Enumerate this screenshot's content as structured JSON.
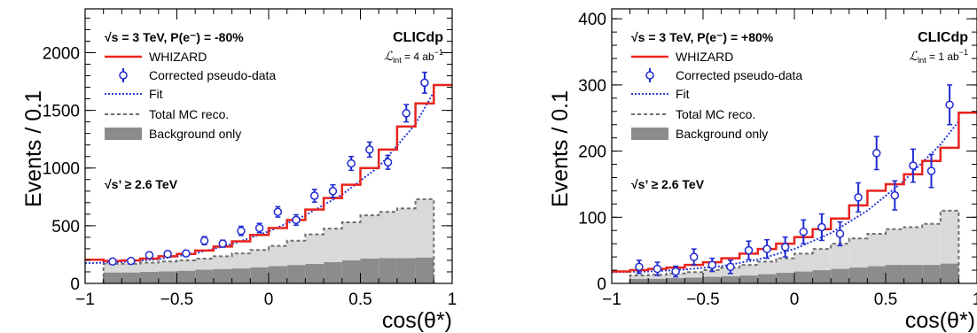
{
  "colors": {
    "whizard": "#e8231e",
    "data": "#1f2ad1",
    "fit": "#2a3ad8",
    "total_mc": "#707070",
    "background": "#8c8c8c",
    "total_mc_fill": "#d9d9d9"
  },
  "chart_data": [
    {
      "type": "line",
      "title": "",
      "xlabel": "cos(θ*)",
      "ylabel": "Events / 0.1",
      "xlim": [
        -1,
        1
      ],
      "ylim": [
        0,
        2380
      ],
      "xticks": [
        "−1",
        "−0.5",
        "0",
        "0.5",
        "1"
      ],
      "yticks": [
        "0",
        "500",
        "1000",
        "1500",
        "2000"
      ],
      "ytick_values": [
        0,
        500,
        1000,
        1500,
        2000
      ],
      "legend_position": "top-left",
      "header": {
        "beam": "√s = 3 TeV, P(e⁻) = -80%",
        "experiment": "CLICdp",
        "lumi_symbol": "ℒ",
        "lumi_sub": "int",
        "lumi_value": " = 4 ab",
        "lumi_sup": "−1"
      },
      "cut_label": "√s’ ≥ 2.6 TeV",
      "legend": [
        "WHIZARD",
        "Corrected pseudo-data",
        "Fit",
        "Total MC reco.",
        "Background only"
      ],
      "bin_edges": [
        -1.0,
        -0.9,
        -0.8,
        -0.7,
        -0.6,
        -0.5,
        -0.4,
        -0.3,
        -0.2,
        -0.1,
        0.0,
        0.1,
        0.2,
        0.3,
        0.4,
        0.5,
        0.6,
        0.7,
        0.8,
        0.9,
        1.0
      ],
      "whizard": [
        205,
        195,
        200,
        215,
        235,
        255,
        285,
        320,
        365,
        420,
        480,
        550,
        640,
        740,
        855,
        1000,
        1160,
        1360,
        1560,
        1720
      ],
      "total_mc_reco": [
        null,
        170,
        170,
        180,
        190,
        200,
        215,
        235,
        260,
        290,
        325,
        370,
        425,
        475,
        530,
        590,
        620,
        650,
        730,
        null
      ],
      "background_only": [
        null,
        95,
        95,
        100,
        105,
        110,
        120,
        125,
        130,
        140,
        150,
        160,
        170,
        185,
        200,
        215,
        220,
        220,
        225,
        null
      ],
      "pseudo_data": {
        "x": [
          -0.85,
          -0.75,
          -0.65,
          -0.55,
          -0.45,
          -0.35,
          -0.25,
          -0.15,
          -0.05,
          0.05,
          0.15,
          0.25,
          0.35,
          0.45,
          0.55,
          0.65,
          0.75,
          0.85
        ],
        "y": [
          190,
          195,
          245,
          255,
          260,
          370,
          345,
          455,
          480,
          620,
          550,
          760,
          800,
          1040,
          1160,
          1050,
          1475,
          1740
        ],
        "err": [
          20,
          20,
          25,
          25,
          25,
          35,
          30,
          40,
          40,
          45,
          45,
          55,
          55,
          60,
          65,
          60,
          75,
          90
        ]
      },
      "fit": {
        "x": [
          -1.0,
          -0.8,
          -0.6,
          -0.4,
          -0.2,
          0.0,
          0.2,
          0.4,
          0.6,
          0.8,
          0.9
        ],
        "y": [
          175,
          185,
          210,
          260,
          340,
          450,
          590,
          770,
          1010,
          1380,
          1660
        ]
      }
    },
    {
      "type": "line",
      "title": "",
      "xlabel": "cos(θ*)",
      "ylabel": "Events / 0.1",
      "xlim": [
        -1,
        1
      ],
      "ylim": [
        0,
        415
      ],
      "xticks": [
        "−1",
        "−0.5",
        "0",
        "0.5",
        "1"
      ],
      "yticks": [
        "0",
        "100",
        "200",
        "300",
        "400"
      ],
      "ytick_values": [
        0,
        100,
        200,
        300,
        400
      ],
      "legend_position": "top-left",
      "header": {
        "beam": "√s = 3 TeV, P(e⁻) = +80%",
        "experiment": "CLICdp",
        "lumi_symbol": "ℒ",
        "lumi_sub": "int",
        "lumi_value": " = 1 ab",
        "lumi_sup": "−1"
      },
      "cut_label": "√s’ ≥ 2.6 TeV",
      "legend": [
        "WHIZARD",
        "Corrected pseudo-data",
        "Fit",
        "Total MC reco.",
        "Background only"
      ],
      "bin_edges": [
        -1.0,
        -0.9,
        -0.8,
        -0.7,
        -0.6,
        -0.5,
        -0.4,
        -0.3,
        -0.2,
        -0.1,
        0.0,
        0.1,
        0.2,
        0.3,
        0.4,
        0.5,
        0.6,
        0.7,
        0.8,
        0.9,
        1.0
      ],
      "whizard": [
        18,
        20,
        22,
        24,
        28,
        32,
        38,
        45,
        52,
        60,
        70,
        82,
        98,
        118,
        140,
        150,
        165,
        185,
        205,
        258
      ],
      "total_mc_reco": [
        null,
        12,
        13,
        15,
        17,
        20,
        24,
        28,
        33,
        38,
        45,
        52,
        60,
        68,
        75,
        82,
        85,
        90,
        110,
        null
      ],
      "background_only": [
        null,
        7,
        7,
        8,
        9,
        10,
        11,
        12,
        14,
        16,
        18,
        20,
        22,
        24,
        26,
        28,
        28,
        28,
        30,
        null
      ],
      "pseudo_data": {
        "x": [
          -0.85,
          -0.75,
          -0.65,
          -0.55,
          -0.45,
          -0.35,
          -0.25,
          -0.15,
          -0.05,
          0.05,
          0.15,
          0.25,
          0.35,
          0.45,
          0.55,
          0.65,
          0.75,
          0.85
        ],
        "y": [
          25,
          22,
          18,
          40,
          28,
          25,
          50,
          52,
          55,
          78,
          85,
          75,
          130,
          197,
          133,
          178,
          170,
          270
        ],
        "err": [
          10,
          10,
          8,
          12,
          10,
          10,
          14,
          14,
          15,
          18,
          20,
          18,
          22,
          25,
          22,
          25,
          25,
          30
        ]
      },
      "fit": {
        "x": [
          -1.0,
          -0.8,
          -0.6,
          -0.4,
          -0.2,
          0.0,
          0.2,
          0.4,
          0.6,
          0.8,
          0.9
        ],
        "y": [
          17,
          18,
          21,
          26,
          36,
          52,
          76,
          110,
          155,
          210,
          245
        ]
      }
    }
  ]
}
